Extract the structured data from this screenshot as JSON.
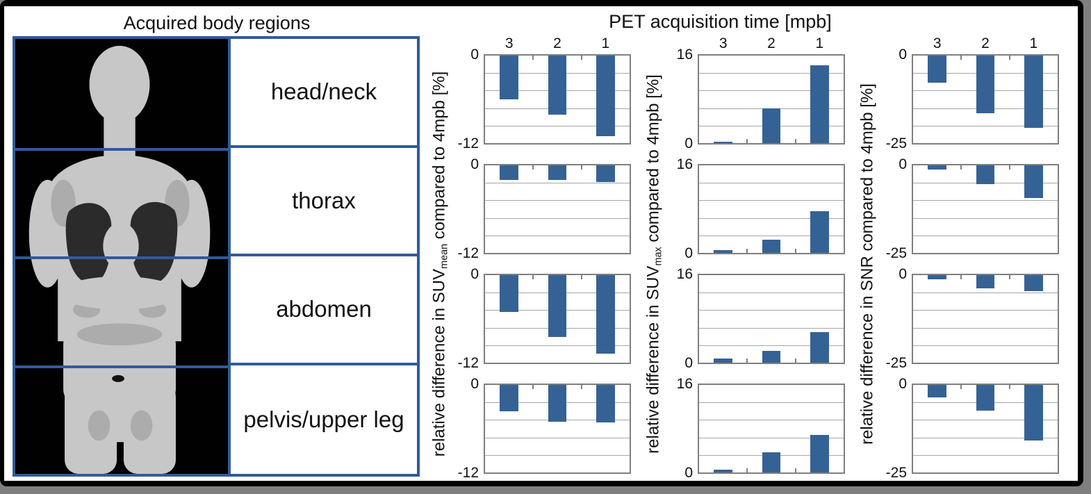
{
  "left_panel": {
    "title": "Acquired body regions",
    "regions": [
      {
        "label": "head/neck"
      },
      {
        "label": "thorax"
      },
      {
        "label": "abdomen"
      },
      {
        "label": "pelvis/upper leg"
      }
    ]
  },
  "chart_data": {
    "type": "bar",
    "title": "PET acquisition time [mpb]",
    "categories": [
      "3",
      "2",
      "1"
    ],
    "rows": [
      "head/neck",
      "thorax",
      "abdomen",
      "pelvis/upper leg"
    ],
    "columns": [
      {
        "metric": "SUVmean",
        "ylabel": {
          "pre": "relative difference in SUV",
          "sub": "mean",
          "post": " compared to 4mpb [%]"
        },
        "ylim": [
          -12,
          0
        ],
        "tick_top": "0",
        "tick_bottom": "-12",
        "gridline_intervals": 5,
        "series_by_row": [
          [
            -6.0,
            -8.1,
            -11.0
          ],
          [
            -2.0,
            -2.0,
            -2.3
          ],
          [
            -5.0,
            -8.5,
            -10.8
          ],
          [
            -3.6,
            -5.0,
            -5.1
          ]
        ]
      },
      {
        "metric": "SUVmax",
        "ylabel": {
          "pre": "relative difference in SUV",
          "sub": "max",
          "post": " compared to 4mpb [%]"
        },
        "ylim": [
          0,
          16
        ],
        "tick_top": "16",
        "tick_bottom": "0",
        "gridline_intervals": 5,
        "series_by_row": [
          [
            0.2,
            6.3,
            14.2
          ],
          [
            0.5,
            2.4,
            7.6
          ],
          [
            0.8,
            2.1,
            5.6
          ],
          [
            0.5,
            3.7,
            6.8
          ]
        ]
      },
      {
        "metric": "SNR",
        "ylabel": {
          "pre": "relative difference in SNR",
          "sub": "",
          "post": " compared to 4mpb [%]"
        },
        "ylim": [
          -25,
          0
        ],
        "tick_top": "0",
        "tick_bottom": "-25",
        "gridline_intervals": 5,
        "series_by_row": [
          [
            -7.7,
            -16.4,
            -20.7
          ],
          [
            -1.1,
            -5.4,
            -9.4
          ],
          [
            -1.2,
            -3.7,
            -4.6
          ],
          [
            -3.5,
            -7.3,
            -15.9
          ]
        ]
      }
    ],
    "colors": {
      "bar": "#356294",
      "gridline": "#a6a6a6",
      "plot_border": "#7f7f7f",
      "table_border": "#2f5b9c",
      "frame": "#000000",
      "page_background": "#7f7f7f"
    }
  }
}
